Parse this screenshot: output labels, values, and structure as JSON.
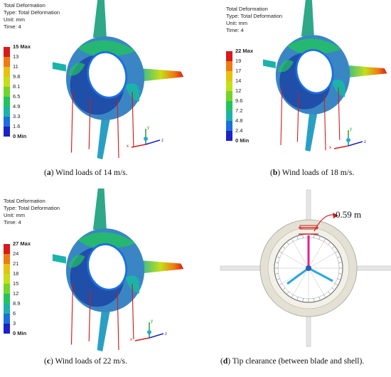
{
  "panels": [
    {
      "info": {
        "title": "Total Deformation",
        "type": "Type: Total Deformation",
        "unit": "Unit: mm",
        "time": "Time: 4"
      },
      "legend": {
        "top": "15 Max",
        "labels": [
          "13",
          "11",
          "9.8",
          "8.1",
          "6.5",
          "4.9",
          "3.3",
          "1.6"
        ],
        "bottom": "0 Min"
      },
      "caption": {
        "letter": "a",
        "text": " Wind loads of 14 m/s."
      }
    },
    {
      "info": {
        "title": "Total Deformation",
        "type": "Type: Total Deformation",
        "unit": "Unit: mm",
        "time": "Time: 4"
      },
      "legend": {
        "top": "22 Max",
        "labels": [
          "19",
          "17",
          "14",
          "12",
          "9.6",
          "7.2",
          "4.8",
          "2.4"
        ],
        "bottom": "0 Min"
      },
      "caption": {
        "letter": "b",
        "text": " Wind loads of 18 m/s."
      }
    },
    {
      "info": {
        "title": "Total Deformation",
        "type": "Type: Total Deformation",
        "unit": "Unit: mm",
        "time": "Time: 4"
      },
      "legend": {
        "top": "27 Max",
        "labels": [
          "24",
          "21",
          "18",
          "15",
          "12",
          "8.9",
          "6",
          "3"
        ],
        "bottom": "0 Min"
      },
      "caption": {
        "letter": "c",
        "text": " Wind loads of 22 m/s."
      }
    },
    {
      "dimension": "0.59 m",
      "caption": {
        "letter": "d",
        "text": " Tip clearance (between blade and shell)."
      }
    }
  ],
  "colors": {
    "scale": [
      "#d71a1a",
      "#ef7a10",
      "#e5c210",
      "#c4df18",
      "#72d52a",
      "#22c35f",
      "#1bb3a9",
      "#1a6fe0",
      "#1a22c8"
    ],
    "shell": "#3a86c4",
    "load_line": "#d21a1a",
    "blade_hl": "#e0208f",
    "blade_norm": "#2aa7e0"
  },
  "icons": {
    "model": "turbine-deformation-model",
    "triad": "axis-triad-icon",
    "clearance": "tip-clearance-diagram"
  }
}
